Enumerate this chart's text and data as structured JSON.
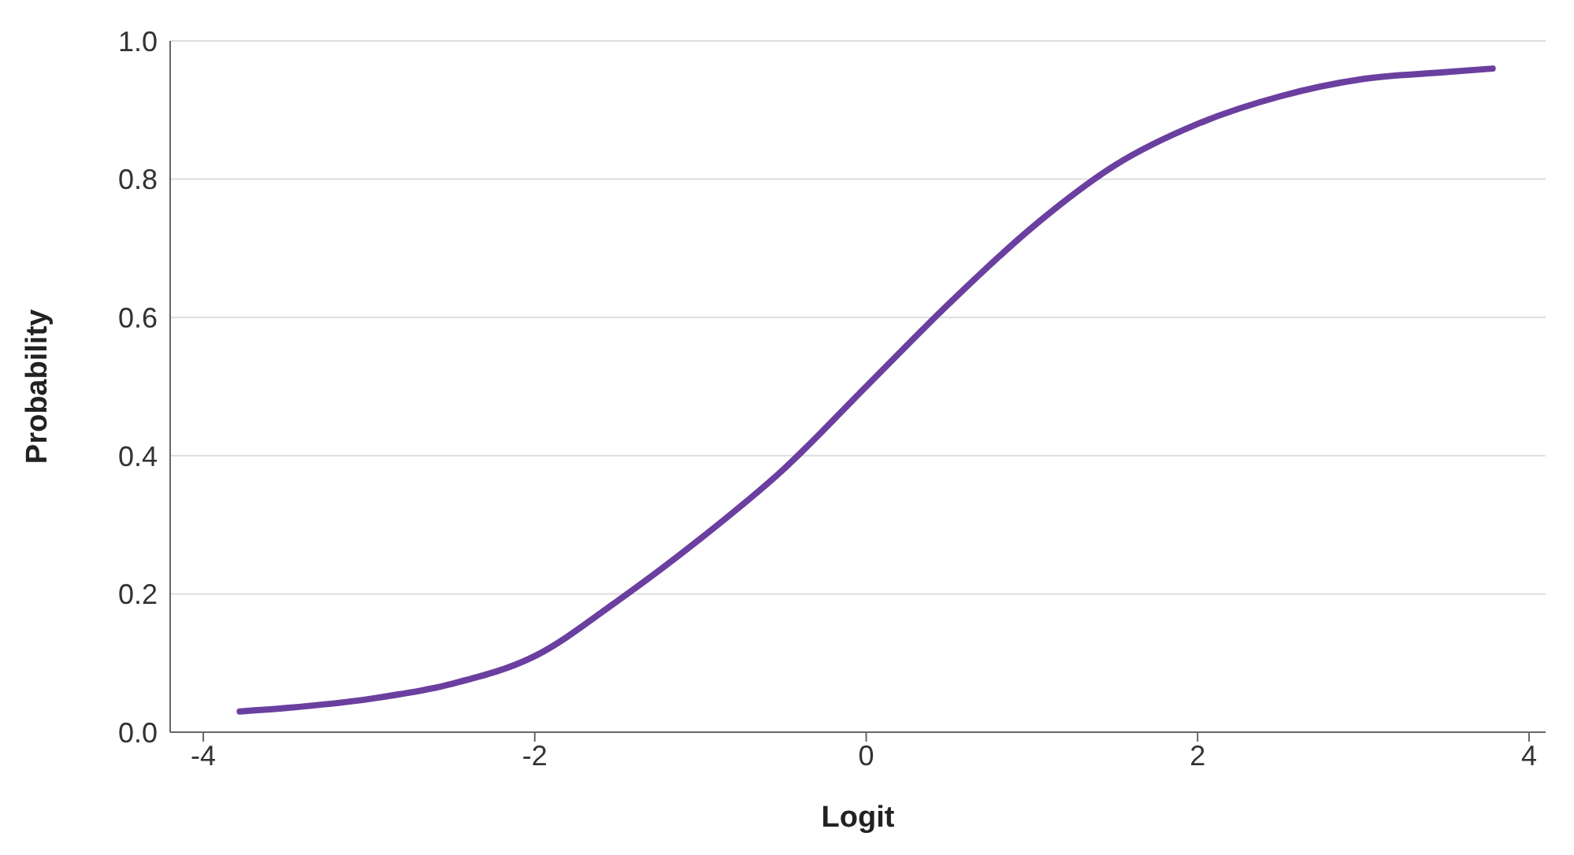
{
  "chart_data": {
    "type": "line",
    "xlabel": "Logit",
    "ylabel": "Probability",
    "x": [
      -3.78,
      -3.5,
      -3,
      -2.5,
      -2,
      -1.5,
      -1,
      -0.5,
      0,
      0.5,
      1,
      1.5,
      2,
      2.5,
      3,
      3.5,
      3.78
    ],
    "series": [
      {
        "color": "#6b3fa0",
        "values": [
          0.03,
          0.035,
          0.048,
          0.07,
          0.11,
          0.19,
          0.28,
          0.38,
          0.5,
          0.62,
          0.73,
          0.82,
          0.88,
          0.92,
          0.945,
          0.955,
          0.96
        ]
      }
    ],
    "xlim": [
      -4.2,
      4.1
    ],
    "xticks": [
      -4,
      -2,
      0,
      2,
      4
    ],
    "ylim": [
      0,
      1
    ],
    "yticks": [
      {
        "value": 0,
        "label": "0.0"
      },
      {
        "value": 0.2,
        "label": "0.2"
      },
      {
        "value": 0.4,
        "label": "0.4"
      },
      {
        "value": 0.6,
        "label": "0.6"
      },
      {
        "value": 0.8,
        "label": "0.8"
      },
      {
        "value": 1,
        "label": "1.0"
      }
    ],
    "grid": "y",
    "marker": "none",
    "line_style": "solid",
    "legend": false
  }
}
